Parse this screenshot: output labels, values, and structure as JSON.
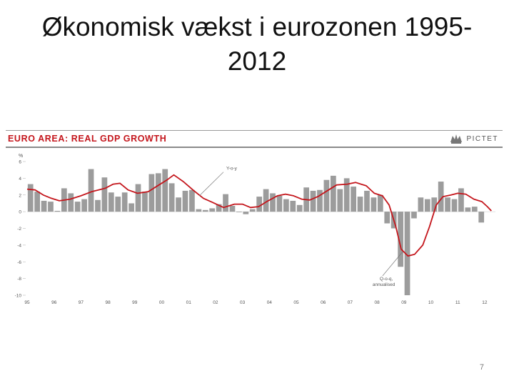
{
  "slide": {
    "title": "Økonomisk vækst i eurozonen 1995-2012",
    "page_number": "7"
  },
  "brand": {
    "name": "PICTET"
  },
  "colors": {
    "bars": "#9c9c9c",
    "line": "#c4161c",
    "chart_title": "#c4161c",
    "axis_text": "#555555"
  },
  "chart_data": {
    "type": "bar",
    "title": "EURO AREA: REAL GDP GROWTH",
    "ylabel": "%",
    "ylim": [
      -10,
      6
    ],
    "yticks": [
      6,
      4,
      2,
      0,
      -2,
      -4,
      -6,
      -8,
      -10
    ],
    "xlim": [
      1995,
      2012.4
    ],
    "xticks": [
      {
        "value": 1995,
        "label": "95"
      },
      {
        "value": 1996,
        "label": "96"
      },
      {
        "value": 1997,
        "label": "97"
      },
      {
        "value": 1998,
        "label": "98"
      },
      {
        "value": 1999,
        "label": "99"
      },
      {
        "value": 2000,
        "label": "00"
      },
      {
        "value": 2001,
        "label": "01"
      },
      {
        "value": 2002,
        "label": "02"
      },
      {
        "value": 2003,
        "label": "03"
      },
      {
        "value": 2004,
        "label": "04"
      },
      {
        "value": 2005,
        "label": "05"
      },
      {
        "value": 2006,
        "label": "06"
      },
      {
        "value": 2007,
        "label": "07"
      },
      {
        "value": 2008,
        "label": "08"
      },
      {
        "value": 2009,
        "label": "09"
      },
      {
        "value": 2010,
        "label": "10"
      },
      {
        "value": 2011,
        "label": "11"
      },
      {
        "value": 2012,
        "label": "12"
      }
    ],
    "series": [
      {
        "name": "Q-o-q, annualised",
        "type": "bar",
        "start": 1995.0,
        "step": 0.25,
        "values": [
          3.3,
          2.4,
          1.3,
          1.2,
          0.1,
          2.8,
          2.2,
          1.2,
          1.5,
          5.1,
          1.4,
          4.1,
          2.3,
          1.8,
          2.3,
          1.0,
          3.3,
          2.4,
          4.5,
          4.6,
          5.1,
          3.4,
          1.7,
          2.5,
          2.6,
          0.3,
          0.2,
          0.4,
          0.9,
          2.1,
          0.7,
          0.0,
          -0.3,
          0.3,
          1.8,
          2.7,
          2.2,
          1.9,
          1.5,
          1.3,
          0.8,
          2.9,
          2.5,
          2.6,
          3.8,
          4.3,
          2.7,
          4.0,
          3.0,
          1.8,
          2.5,
          1.7,
          2.0,
          -1.4,
          -2.0,
          -6.6,
          -10.0,
          -0.8,
          1.7,
          1.5,
          1.7,
          3.6,
          1.7,
          1.5,
          2.8,
          0.5,
          0.6,
          -1.3
        ]
      },
      {
        "name": "Y-o-y",
        "type": "line",
        "points": [
          [
            1995.0,
            2.7
          ],
          [
            1995.3,
            2.6
          ],
          [
            1995.6,
            2.0
          ],
          [
            1995.9,
            1.6
          ],
          [
            1996.2,
            1.3
          ],
          [
            1996.6,
            1.5
          ],
          [
            1997.0,
            1.9
          ],
          [
            1997.4,
            2.4
          ],
          [
            1997.9,
            2.8
          ],
          [
            1998.2,
            3.3
          ],
          [
            1998.45,
            3.4
          ],
          [
            1998.75,
            2.6
          ],
          [
            1999.1,
            2.2
          ],
          [
            1999.5,
            2.4
          ],
          [
            1999.9,
            3.2
          ],
          [
            2000.2,
            3.8
          ],
          [
            2000.45,
            4.4
          ],
          [
            2000.8,
            3.6
          ],
          [
            2001.2,
            2.5
          ],
          [
            2001.55,
            1.6
          ],
          [
            2001.9,
            1.1
          ],
          [
            2002.3,
            0.5
          ],
          [
            2002.7,
            0.9
          ],
          [
            2003.0,
            0.9
          ],
          [
            2003.3,
            0.5
          ],
          [
            2003.6,
            0.6
          ],
          [
            2003.9,
            1.2
          ],
          [
            2004.3,
            1.9
          ],
          [
            2004.6,
            2.1
          ],
          [
            2004.9,
            1.9
          ],
          [
            2005.2,
            1.5
          ],
          [
            2005.5,
            1.4
          ],
          [
            2005.8,
            1.8
          ],
          [
            2006.2,
            2.6
          ],
          [
            2006.5,
            3.2
          ],
          [
            2006.9,
            3.3
          ],
          [
            2007.2,
            3.5
          ],
          [
            2007.6,
            3.1
          ],
          [
            2007.9,
            2.2
          ],
          [
            2008.2,
            1.9
          ],
          [
            2008.45,
            0.8
          ],
          [
            2008.7,
            -1.8
          ],
          [
            2008.9,
            -4.5
          ],
          [
            2009.15,
            -5.3
          ],
          [
            2009.4,
            -5.1
          ],
          [
            2009.7,
            -4.0
          ],
          [
            2009.95,
            -1.8
          ],
          [
            2010.2,
            0.8
          ],
          [
            2010.45,
            1.8
          ],
          [
            2010.75,
            2.0
          ],
          [
            2011.0,
            2.2
          ],
          [
            2011.3,
            2.1
          ],
          [
            2011.6,
            1.5
          ],
          [
            2011.9,
            1.2
          ],
          [
            2012.1,
            0.6
          ],
          [
            2012.25,
            0.1
          ]
        ]
      }
    ],
    "annotations": [
      {
        "text": "Y-o-y",
        "x": 2002.4,
        "y": 5.0,
        "points_to": [
          2001.4,
          1.9
        ]
      },
      {
        "text": "Q-o-q, annualised",
        "x": 2008.1,
        "y": -8.2,
        "points_to": [
          2008.95,
          -4.8
        ]
      }
    ],
    "grid": false,
    "legend": "none"
  }
}
